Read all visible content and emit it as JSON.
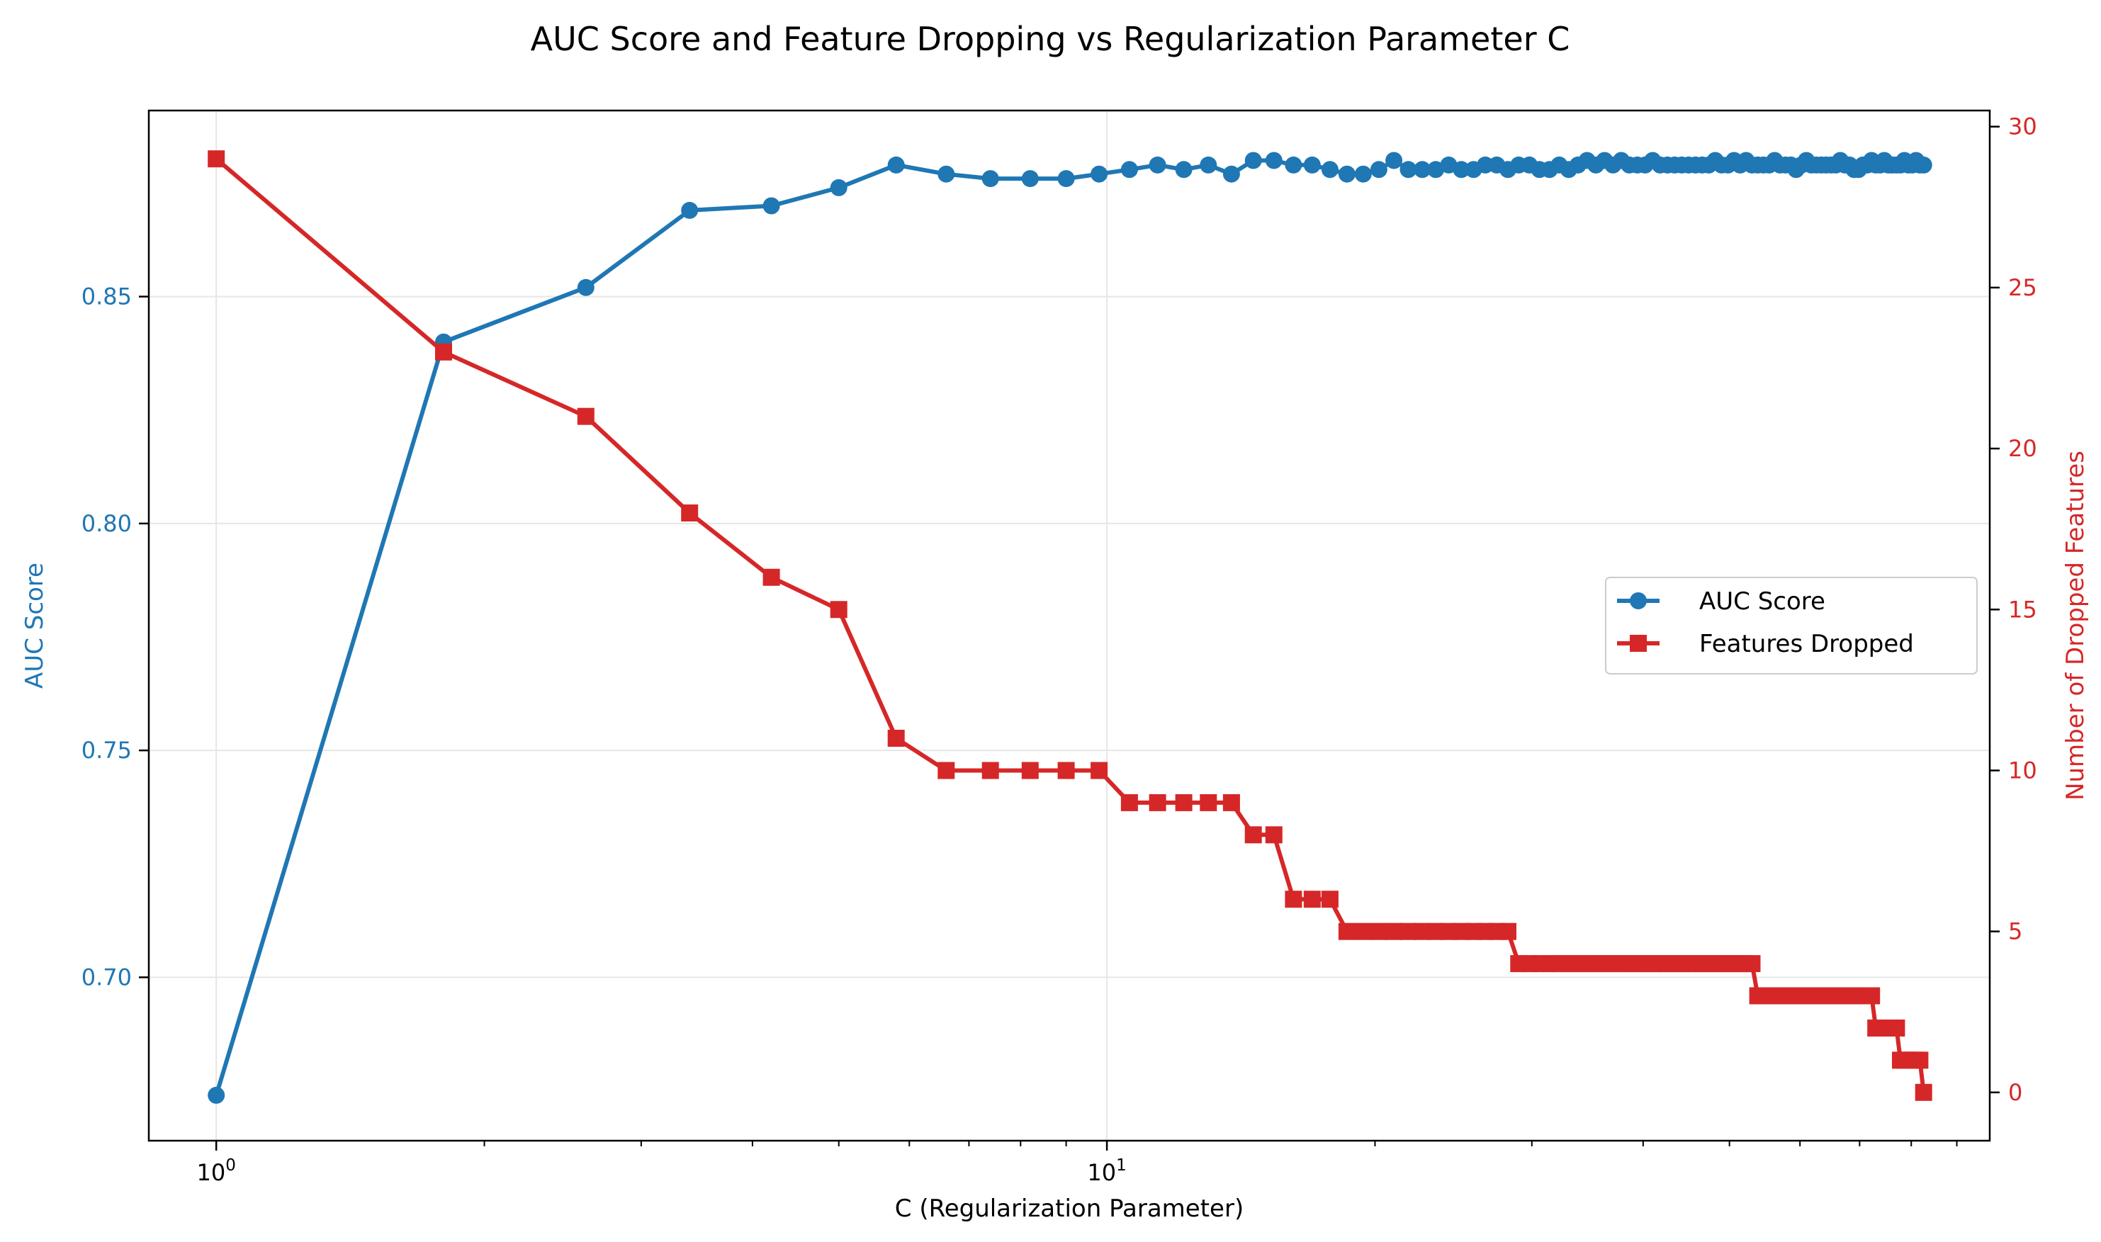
{
  "chart_data": {
    "type": "line",
    "title": "AUC Score and Feature Dropping vs Regularization Parameter C",
    "xlabel": "C (Regularization Parameter)",
    "ylabel_left": "AUC Score",
    "ylabel_right": "Number of Dropped Features",
    "x_scale": "log",
    "xlim": [
      0.84,
      98
    ],
    "ylim_left": [
      0.664,
      0.891
    ],
    "ylim_right": [
      -1.5,
      30.5
    ],
    "x_tick_labels": [
      {
        "value": 1,
        "base": "10",
        "exp": "0"
      },
      {
        "value": 10,
        "base": "10",
        "exp": "1"
      }
    ],
    "y_left_ticks": [
      0.7,
      0.75,
      0.8,
      0.85
    ],
    "y_left_tick_labels": [
      "0.70",
      "0.75",
      "0.80",
      "0.85"
    ],
    "y_right_ticks": [
      0,
      5,
      10,
      15,
      20,
      25,
      30
    ],
    "y_right_tick_labels": [
      "0",
      "5",
      "10",
      "15",
      "20",
      "25",
      "30"
    ],
    "grid": true,
    "legend_position": "center-right",
    "colors": {
      "auc": "#1f77b4",
      "features": "#d62728"
    },
    "series": [
      {
        "name": "AUC Score",
        "marker": "circle",
        "axis": "left",
        "x": [
          1.0,
          1.8,
          2.6,
          3.4,
          4.2,
          5.0,
          5.8,
          6.6,
          7.4,
          8.2,
          9.0,
          9.8,
          10.6,
          11.4,
          12.2,
          13.0,
          13.8,
          14.6,
          15.4,
          16.2,
          17.0,
          17.8,
          18.6,
          19.4,
          20.2,
          21.0,
          21.8,
          22.6,
          23.4,
          24.2,
          25.0,
          25.8,
          26.6,
          27.4,
          28.2,
          29.0,
          29.8,
          30.6,
          31.4,
          32.2,
          33.0,
          33.8,
          34.6,
          35.4,
          36.2,
          37.0,
          37.8,
          38.6,
          39.4,
          40.2,
          41.0,
          41.8,
          42.6,
          43.4,
          44.2,
          45.0,
          45.8,
          46.6,
          47.4,
          48.2,
          49.0,
          49.8,
          50.6,
          51.4,
          52.2,
          53.0,
          53.8,
          54.6,
          55.4,
          56.2,
          57.0,
          57.8,
          58.6,
          59.4,
          60.2,
          61.0,
          61.8,
          62.6,
          63.4,
          64.2,
          65.0,
          65.8,
          66.6,
          67.4,
          68.2,
          69.0,
          69.8,
          70.6,
          71.4,
          72.2,
          73.0,
          73.8,
          74.6,
          75.4,
          76.2,
          77.0,
          77.8,
          78.6,
          79.4,
          80.2,
          81.0,
          81.8,
          82.6
        ],
        "values": [
          0.674,
          0.84,
          0.852,
          0.869,
          0.87,
          0.874,
          0.879,
          0.877,
          0.876,
          0.876,
          0.876,
          0.877,
          0.878,
          0.879,
          0.878,
          0.879,
          0.877,
          0.88,
          0.88,
          0.879,
          0.879,
          0.878,
          0.877,
          0.877,
          0.878,
          0.88,
          0.878,
          0.878,
          0.878,
          0.879,
          0.878,
          0.878,
          0.879,
          0.879,
          0.878,
          0.879,
          0.879,
          0.878,
          0.878,
          0.879,
          0.878,
          0.879,
          0.88,
          0.879,
          0.88,
          0.879,
          0.88,
          0.879,
          0.879,
          0.879,
          0.88,
          0.879,
          0.879,
          0.879,
          0.879,
          0.879,
          0.879,
          0.879,
          0.879,
          0.88,
          0.879,
          0.879,
          0.88,
          0.879,
          0.88,
          0.879,
          0.879,
          0.879,
          0.879,
          0.88,
          0.879,
          0.879,
          0.879,
          0.878,
          0.879,
          0.88,
          0.879,
          0.879,
          0.879,
          0.879,
          0.879,
          0.879,
          0.88,
          0.879,
          0.879,
          0.878,
          0.878,
          0.879,
          0.879,
          0.88,
          0.879,
          0.879,
          0.88,
          0.879,
          0.879,
          0.879,
          0.879,
          0.88,
          0.879,
          0.879,
          0.88,
          0.879,
          0.879
        ]
      },
      {
        "name": "Features Dropped",
        "marker": "square",
        "axis": "right",
        "x": [
          1.0,
          1.8,
          2.6,
          3.4,
          4.2,
          5.0,
          5.8,
          6.6,
          7.4,
          8.2,
          9.0,
          9.8,
          10.6,
          11.4,
          12.2,
          13.0,
          13.8,
          14.6,
          15.4,
          16.2,
          17.0,
          17.8,
          18.6,
          19.4,
          20.2,
          21.0,
          21.8,
          22.6,
          23.4,
          24.2,
          25.0,
          25.8,
          26.6,
          27.4,
          28.2,
          29.0,
          29.8,
          30.6,
          31.4,
          32.2,
          33.0,
          33.8,
          34.6,
          35.4,
          36.2,
          37.0,
          37.8,
          38.6,
          39.4,
          40.2,
          41.0,
          41.8,
          42.6,
          43.4,
          44.2,
          45.0,
          45.8,
          46.6,
          47.4,
          48.2,
          49.0,
          49.8,
          50.6,
          51.4,
          52.2,
          53.0,
          53.8,
          54.6,
          55.4,
          56.2,
          57.0,
          57.8,
          58.6,
          59.4,
          60.2,
          61.0,
          61.8,
          62.6,
          63.4,
          64.2,
          65.0,
          65.8,
          66.6,
          67.4,
          68.2,
          69.0,
          69.8,
          70.6,
          71.4,
          72.2,
          73.0,
          73.8,
          74.6,
          75.4,
          76.2,
          77.0,
          77.8,
          78.6,
          79.4,
          80.2,
          81.0,
          81.8,
          82.6
        ],
        "values": [
          29,
          23,
          21,
          18,
          16,
          15,
          11,
          10,
          10,
          10,
          10,
          10,
          9,
          9,
          9,
          9,
          9,
          8,
          8,
          6,
          6,
          6,
          5,
          5,
          5,
          5,
          5,
          5,
          5,
          5,
          5,
          5,
          5,
          5,
          5,
          4,
          4,
          4,
          4,
          4,
          4,
          4,
          4,
          4,
          4,
          4,
          4,
          4,
          4,
          4,
          4,
          4,
          4,
          4,
          4,
          4,
          4,
          4,
          4,
          4,
          4,
          4,
          4,
          4,
          4,
          4,
          3,
          3,
          3,
          3,
          3,
          3,
          3,
          3,
          3,
          3,
          3,
          3,
          3,
          3,
          3,
          3,
          3,
          3,
          3,
          3,
          3,
          3,
          3,
          3,
          2,
          2,
          2,
          2,
          2,
          2,
          1,
          1,
          1,
          1,
          1,
          1,
          0
        ]
      }
    ]
  }
}
